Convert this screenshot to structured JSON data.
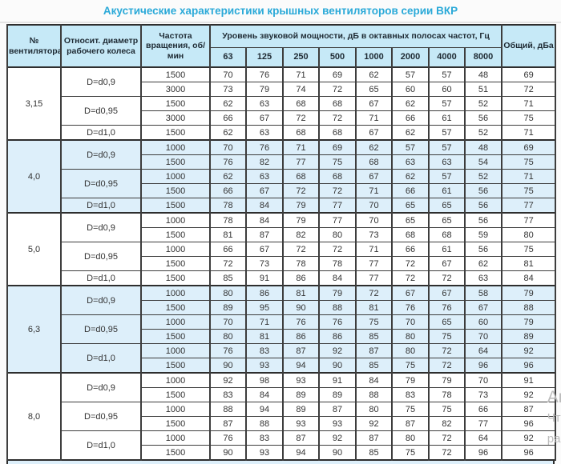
{
  "title": "Акустические характеристики крышных вентиляторов серии ВКР",
  "colors": {
    "title_accent": "#2aa9d8",
    "header_bg": "#c6e9f7",
    "shaded_row_bg": "#ddeffa",
    "border": "#2e2e2e"
  },
  "watermark": {
    "line1": "Ак",
    "line2": "Чт",
    "line3": "ра"
  },
  "table": {
    "headers": {
      "fan": "№ вентилятора",
      "diameter": "Относит. диаметр рабочего колеса",
      "speed": "Частота вращения, об/мин",
      "spl_group": "Уровень звуковой мощности, дБ в октавных полосах частот, Гц",
      "freqs": [
        "63",
        "125",
        "250",
        "500",
        "1000",
        "2000",
        "4000",
        "8000"
      ],
      "total": "Общий, дБа"
    },
    "groups": [
      {
        "fan": "3,15",
        "shaded": false,
        "subgroups": [
          {
            "diameter": "D=d0,9",
            "rows": [
              {
                "speed": "1500",
                "values": [
                  70,
                  76,
                  71,
                  69,
                  62,
                  57,
                  57,
                  48
                ],
                "total": 69
              },
              {
                "speed": "3000",
                "values": [
                  73,
                  79,
                  74,
                  72,
                  65,
                  60,
                  60,
                  51
                ],
                "total": 72
              }
            ]
          },
          {
            "diameter": "D=d0,95",
            "rows": [
              {
                "speed": "1500",
                "values": [
                  62,
                  63,
                  68,
                  68,
                  67,
                  62,
                  57,
                  52
                ],
                "total": 71
              },
              {
                "speed": "3000",
                "values": [
                  66,
                  67,
                  72,
                  72,
                  71,
                  66,
                  61,
                  56
                ],
                "total": 75
              }
            ]
          },
          {
            "diameter": "D=d1,0",
            "rows": [
              {
                "speed": "1500",
                "values": [
                  62,
                  63,
                  68,
                  68,
                  67,
                  62,
                  57,
                  52
                ],
                "total": 71
              }
            ]
          }
        ]
      },
      {
        "fan": "4,0",
        "shaded": true,
        "subgroups": [
          {
            "diameter": "D=d0,9",
            "rows": [
              {
                "speed": "1000",
                "values": [
                  70,
                  76,
                  71,
                  69,
                  62,
                  57,
                  57,
                  48
                ],
                "total": 69
              },
              {
                "speed": "1500",
                "values": [
                  76,
                  82,
                  77,
                  75,
                  68,
                  63,
                  63,
                  54
                ],
                "total": 75
              }
            ]
          },
          {
            "diameter": "D=d0,95",
            "rows": [
              {
                "speed": "1000",
                "values": [
                  62,
                  63,
                  68,
                  68,
                  67,
                  62,
                  57,
                  52
                ],
                "total": 71
              },
              {
                "speed": "1500",
                "values": [
                  66,
                  67,
                  72,
                  72,
                  71,
                  66,
                  61,
                  56
                ],
                "total": 75
              }
            ]
          },
          {
            "diameter": "D=d1,0",
            "rows": [
              {
                "speed": "1500",
                "values": [
                  78,
                  84,
                  79,
                  77,
                  70,
                  65,
                  65,
                  56
                ],
                "total": 77
              }
            ]
          }
        ]
      },
      {
        "fan": "5,0",
        "shaded": false,
        "subgroups": [
          {
            "diameter": "D=d0,9",
            "rows": [
              {
                "speed": "1000",
                "values": [
                  78,
                  84,
                  79,
                  77,
                  70,
                  65,
                  65,
                  56
                ],
                "total": 77
              },
              {
                "speed": "1500",
                "values": [
                  81,
                  87,
                  82,
                  80,
                  73,
                  68,
                  68,
                  59
                ],
                "total": 80
              }
            ]
          },
          {
            "diameter": "D=d0,95",
            "rows": [
              {
                "speed": "1000",
                "values": [
                  66,
                  67,
                  72,
                  72,
                  71,
                  66,
                  61,
                  56
                ],
                "total": 75
              },
              {
                "speed": "1500",
                "values": [
                  72,
                  73,
                  78,
                  78,
                  77,
                  72,
                  67,
                  62
                ],
                "total": 81
              }
            ]
          },
          {
            "diameter": "D=d1,0",
            "rows": [
              {
                "speed": "1500",
                "values": [
                  85,
                  91,
                  86,
                  84,
                  77,
                  72,
                  72,
                  63
                ],
                "total": 84
              }
            ]
          }
        ]
      },
      {
        "fan": "6,3",
        "shaded": true,
        "subgroups": [
          {
            "diameter": "D=d0,9",
            "rows": [
              {
                "speed": "1000",
                "values": [
                  80,
                  86,
                  81,
                  79,
                  72,
                  67,
                  67,
                  58
                ],
                "total": 79
              },
              {
                "speed": "1500",
                "values": [
                  89,
                  95,
                  90,
                  88,
                  81,
                  76,
                  76,
                  67
                ],
                "total": 88
              }
            ]
          },
          {
            "diameter": "D=d0,95",
            "rows": [
              {
                "speed": "1000",
                "values": [
                  70,
                  71,
                  76,
                  76,
                  75,
                  70,
                  65,
                  60
                ],
                "total": 79
              },
              {
                "speed": "1500",
                "values": [
                  80,
                  81,
                  86,
                  86,
                  85,
                  80,
                  75,
                  70
                ],
                "total": 89
              }
            ]
          },
          {
            "diameter": "D=d1,0",
            "rows": [
              {
                "speed": "1000",
                "values": [
                  76,
                  83,
                  87,
                  92,
                  87,
                  80,
                  72,
                  64
                ],
                "total": 92
              },
              {
                "speed": "1500",
                "values": [
                  90,
                  93,
                  94,
                  90,
                  85,
                  75,
                  72,
                  96
                ],
                "total": 96
              }
            ]
          }
        ]
      },
      {
        "fan": "8,0",
        "shaded": false,
        "subgroups": [
          {
            "diameter": "D=d0,9",
            "rows": [
              {
                "speed": "1000",
                "values": [
                  92,
                  98,
                  93,
                  91,
                  84,
                  79,
                  79,
                  70
                ],
                "total": 91
              },
              {
                "speed": "1500",
                "values": [
                  83,
                  84,
                  89,
                  89,
                  88,
                  83,
                  78,
                  73
                ],
                "total": 92
              }
            ]
          },
          {
            "diameter": "D=d0,95",
            "rows": [
              {
                "speed": "1000",
                "values": [
                  88,
                  94,
                  89,
                  87,
                  80,
                  75,
                  75,
                  66
                ],
                "total": 87
              },
              {
                "speed": "1500",
                "values": [
                  87,
                  88,
                  93,
                  93,
                  92,
                  87,
                  82,
                  77
                ],
                "total": 96
              }
            ]
          },
          {
            "diameter": "D=d1,0",
            "rows": [
              {
                "speed": "1000",
                "values": [
                  76,
                  83,
                  87,
                  92,
                  87,
                  80,
                  72,
                  64
                ],
                "total": 92
              },
              {
                "speed": "1500",
                "values": [
                  90,
                  93,
                  94,
                  90,
                  85,
                  75,
                  72,
                  96
                ],
                "total": 96
              }
            ]
          }
        ]
      }
    ]
  }
}
